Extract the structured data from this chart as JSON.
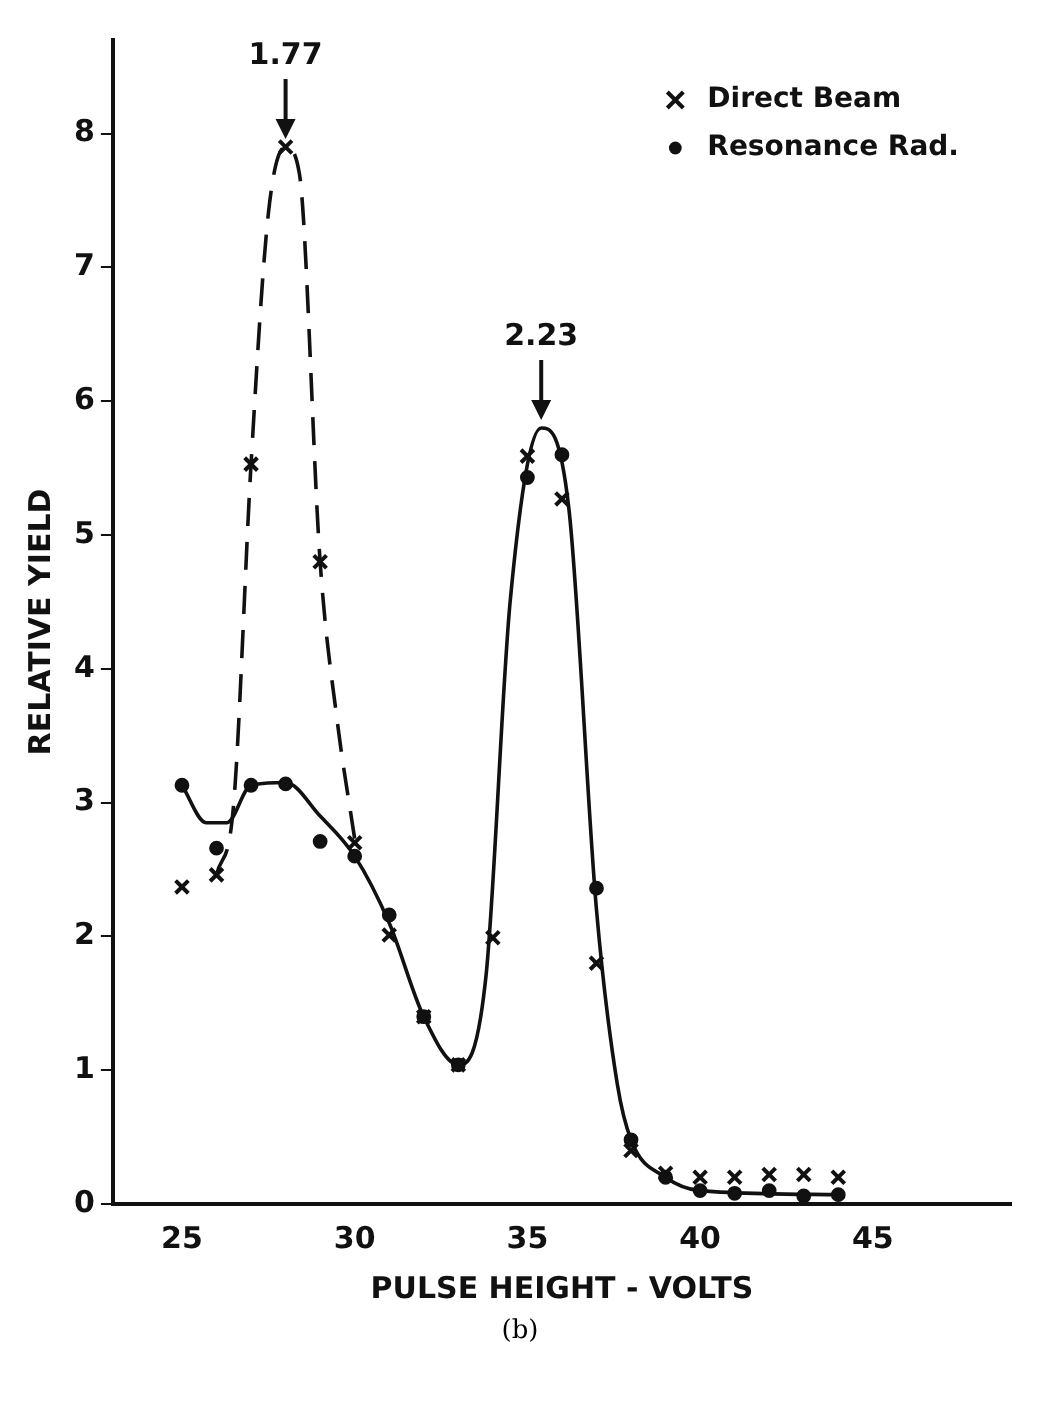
{
  "chart_data": {
    "type": "scatter",
    "xlabel": "PULSE HEIGHT - VOLTS",
    "ylabel": "RELATIVE YIELD",
    "xlim": [
      23,
      49
    ],
    "ylim": [
      0,
      8.7
    ],
    "xticks": [
      25,
      30,
      35,
      40,
      45
    ],
    "yticks": [
      0,
      1,
      2,
      3,
      4,
      5,
      6,
      7,
      8
    ],
    "grid": false,
    "legend": "top right",
    "series": [
      {
        "name": "Direct Beam",
        "type": "scatter",
        "marker": "cross",
        "color": "#111111",
        "x": [
          25,
          26,
          27,
          28,
          29,
          30,
          31,
          32,
          33,
          34,
          35,
          36,
          37,
          38,
          39,
          40,
          41,
          42,
          43,
          44
        ],
        "values": [
          2.37,
          2.46,
          5.53,
          7.9,
          4.8,
          2.7,
          2.01,
          1.4,
          1.04,
          1.99,
          5.59,
          5.27,
          1.8,
          0.4,
          0.23,
          0.2,
          0.2,
          0.22,
          0.22,
          0.2
        ]
      },
      {
        "name": "Resonance Rad.",
        "type": "scatter",
        "marker": "circle",
        "color": "#111111",
        "x": [
          25,
          26,
          27,
          28,
          29,
          30,
          31,
          32,
          33,
          35,
          36,
          37,
          38,
          39,
          40,
          41,
          42,
          43,
          44
        ],
        "values": [
          3.13,
          2.66,
          3.13,
          3.14,
          2.71,
          2.6,
          2.16,
          1.4,
          1.04,
          5.43,
          5.6,
          2.36,
          0.48,
          0.2,
          0.1,
          0.08,
          0.1,
          0.06,
          0.07
        ]
      },
      {
        "type": "line",
        "marker": "none",
        "line_style": "dashed",
        "color": "#111111",
        "x": [
          26,
          26.5,
          27,
          27.5,
          28,
          28.4,
          29,
          29.5,
          30
        ],
        "values": [
          2.46,
          3.0,
          5.53,
          7.4,
          7.9,
          7.7,
          4.8,
          3.6,
          2.73
        ]
      },
      {
        "type": "line",
        "marker": "none",
        "line_style": "solid",
        "color": "#111111",
        "x": [
          25,
          25.7,
          26.3,
          27,
          28,
          29,
          30,
          31,
          32,
          33,
          33.8,
          34.5,
          35.4,
          36.2,
          37,
          37.6,
          38,
          39,
          40,
          44
        ],
        "values": [
          3.13,
          2.85,
          2.85,
          3.13,
          3.15,
          2.9,
          2.6,
          2.1,
          1.4,
          1.04,
          1.7,
          4.5,
          5.8,
          5.2,
          2.2,
          0.9,
          0.48,
          0.2,
          0.1,
          0.07
        ]
      }
    ],
    "annotations": [
      {
        "text": "1.77",
        "x": 28,
        "y": 7.9
      },
      {
        "text": "2.23",
        "x": 35.4,
        "y": 5.8
      },
      "(b)"
    ]
  }
}
